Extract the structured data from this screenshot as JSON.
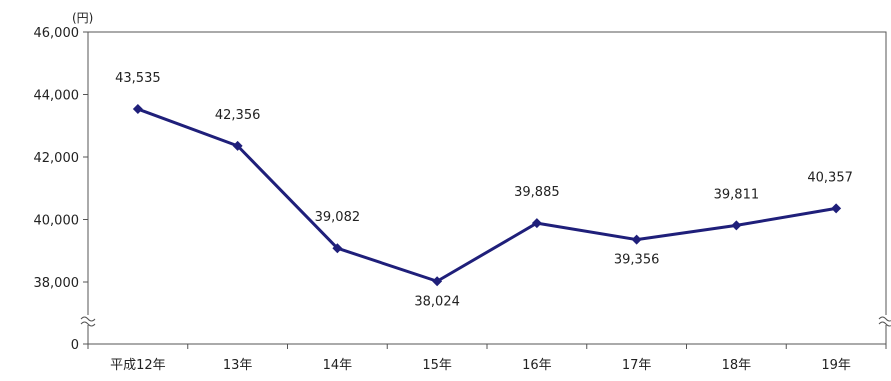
{
  "chart_data": {
    "type": "line",
    "unit": "(円)",
    "categories": [
      "平成12年",
      "13年",
      "14年",
      "15年",
      "16年",
      "17年",
      "18年",
      "19年"
    ],
    "series": [
      {
        "values": [
          43535,
          42356,
          39082,
          38024,
          39885,
          39356,
          39811,
          40357
        ],
        "labels": [
          "43,535",
          "42,356",
          "39,082",
          "38,024",
          "39,885",
          "39,356",
          "39,811",
          "40,357"
        ],
        "color": "#1f1f7a"
      }
    ],
    "y_ticks": [
      {
        "value": 46000,
        "label": "46,000"
      },
      {
        "value": 44000,
        "label": "44,000"
      },
      {
        "value": 42000,
        "label": "42,000"
      },
      {
        "value": 40000,
        "label": "40,000"
      },
      {
        "value": 38000,
        "label": "38,000"
      },
      {
        "value": 0,
        "label": "0"
      }
    ],
    "ylim": [
      38000,
      46000
    ],
    "axis_break": true,
    "grid": false,
    "border_color": "#555555"
  }
}
